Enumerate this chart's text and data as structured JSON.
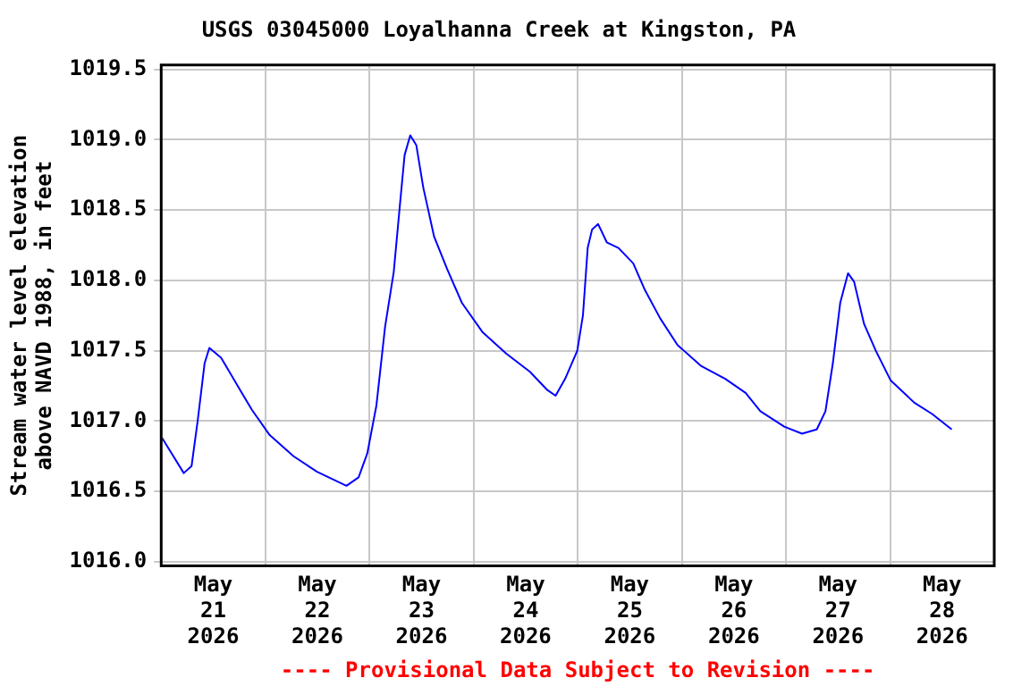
{
  "chart_data": {
    "type": "line",
    "title": "USGS 03045000 Loyalhanna Creek at Kingston, PA",
    "ylabel": "Stream water level elevation above NAVD 1988, in feet",
    "annotations": [
      "---- Provisional Data Subject to Revision ----"
    ],
    "x": [
      "2026-05-21T00:12",
      "2026-05-21T05:12",
      "2026-05-21T07:00",
      "2026-05-21T08:24",
      "2026-05-21T10:00",
      "2026-05-21T11:06",
      "2026-05-21T13:48",
      "2026-05-21T18:12",
      "2026-05-21T20:54",
      "2026-05-22T01:00",
      "2026-05-22T06:30",
      "2026-05-22T11:54",
      "2026-05-22T18:42",
      "2026-05-22T21:30",
      "2026-05-22T23:30",
      "2026-05-23T01:36",
      "2026-05-23T03:36",
      "2026-05-23T05:36",
      "2026-05-23T07:00",
      "2026-05-23T08:06",
      "2026-05-23T09:24",
      "2026-05-23T10:48",
      "2026-05-23T12:24",
      "2026-05-23T14:54",
      "2026-05-23T17:54",
      "2026-05-23T21:18",
      "2026-05-24T02:06",
      "2026-05-24T07:30",
      "2026-05-24T13:00",
      "2026-05-24T17:00",
      "2026-05-24T18:54",
      "2026-05-24T21:06",
      "2026-05-24T23:54",
      "2026-05-25T01:12",
      "2026-05-25T02:18",
      "2026-05-25T03:18",
      "2026-05-25T04:42",
      "2026-05-25T06:42",
      "2026-05-25T09:24",
      "2026-05-25T12:48",
      "2026-05-25T15:30",
      "2026-05-25T19:00",
      "2026-05-25T23:00",
      "2026-05-26T04:30",
      "2026-05-26T10:00",
      "2026-05-26T14:42",
      "2026-05-26T18:06",
      "2026-05-26T23:36",
      "2026-05-27T03:42",
      "2026-05-27T07:06",
      "2026-05-27T09:06",
      "2026-05-27T10:48",
      "2026-05-27T12:30",
      "2026-05-27T14:18",
      "2026-05-27T15:42",
      "2026-05-27T18:00",
      "2026-05-27T20:42",
      "2026-05-28T00:06",
      "2026-05-28T05:36",
      "2026-05-28T09:42",
      "2026-05-28T14:12"
    ],
    "series": [
      {
        "color": "#0000ff",
        "values": [
          1016.88,
          1016.63,
          1016.68,
          1017.0,
          1017.41,
          1017.52,
          1017.45,
          1017.22,
          1017.08,
          1016.9,
          1016.75,
          1016.64,
          1016.54,
          1016.6,
          1016.77,
          1017.11,
          1017.67,
          1018.06,
          1018.53,
          1018.89,
          1019.03,
          1018.96,
          1018.66,
          1018.31,
          1018.08,
          1017.84,
          1017.63,
          1017.48,
          1017.35,
          1017.22,
          1017.18,
          1017.3,
          1017.5,
          1017.75,
          1018.23,
          1018.36,
          1018.4,
          1018.27,
          1018.23,
          1018.12,
          1017.93,
          1017.73,
          1017.54,
          1017.39,
          1017.3,
          1017.2,
          1017.07,
          1016.96,
          1016.91,
          1016.94,
          1017.07,
          1017.41,
          1017.84,
          1018.05,
          1017.99,
          1017.69,
          1017.5,
          1017.29,
          1017.13,
          1017.05,
          1016.94
        ]
      }
    ],
    "xlim": [
      "2026-05-21",
      "2026-05-29"
    ],
    "xticks": [
      {
        "value": "2026-05-21T12:00",
        "label": "May\n21\n2026"
      },
      {
        "value": "2026-05-22T00:00",
        "label": null
      },
      {
        "value": "2026-05-22T12:00",
        "label": "May\n22\n2026"
      },
      {
        "value": "2026-05-23T00:00",
        "label": null
      },
      {
        "value": "2026-05-23T12:00",
        "label": "May\n23\n2026"
      },
      {
        "value": "2026-05-24T00:00",
        "label": null
      },
      {
        "value": "2026-05-24T12:00",
        "label": "May\n24\n2026"
      },
      {
        "value": "2026-05-25T00:00",
        "label": null
      },
      {
        "value": "2026-05-25T12:00",
        "label": "May\n25\n2026"
      },
      {
        "value": "2026-05-26T00:00",
        "label": null
      },
      {
        "value": "2026-05-26T12:00",
        "label": "May\n26\n2026"
      },
      {
        "value": "2026-05-27T00:00",
        "label": null
      },
      {
        "value": "2026-05-27T12:00",
        "label": "May\n27\n2026"
      },
      {
        "value": "2026-05-28T00:00",
        "label": null
      },
      {
        "value": "2026-05-28T12:00",
        "label": "May\n28\n2026"
      }
    ],
    "ylim": [
      1015.97,
      1019.53
    ],
    "yticks": [
      {
        "value": 1016,
        "label": "1016.0"
      },
      {
        "value": 1016.5,
        "label": "1016.5"
      },
      {
        "value": 1017,
        "label": "1017.0"
      },
      {
        "value": 1017.5,
        "label": "1017.5"
      },
      {
        "value": 1018,
        "label": "1018.0"
      },
      {
        "value": 1018.5,
        "label": "1018.5"
      },
      {
        "value": 1019,
        "label": "1019.0"
      },
      {
        "value": 1019.5,
        "label": "1019.5"
      }
    ],
    "grid": true,
    "marker": "none",
    "line_style": "solid",
    "legend": false
  }
}
